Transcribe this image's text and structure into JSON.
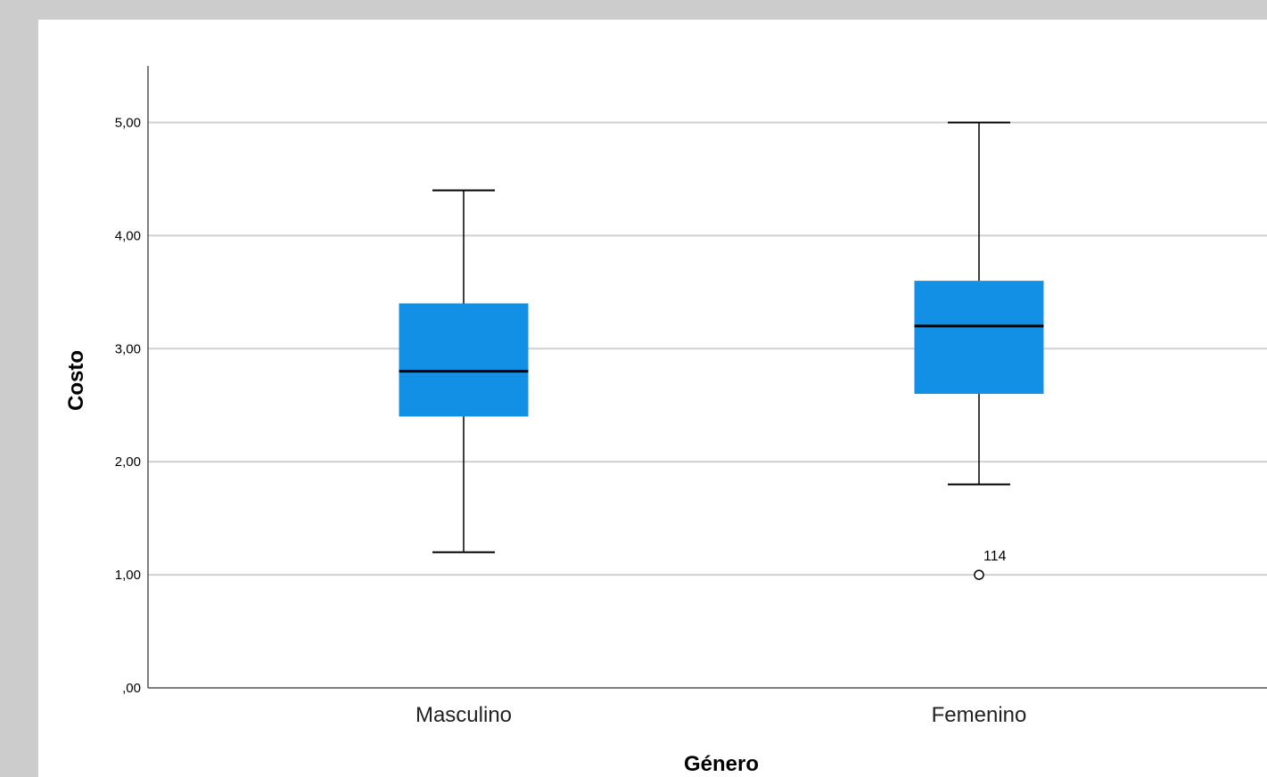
{
  "chart_data": {
    "type": "boxplot",
    "xlabel": "Género",
    "ylabel": "Costo",
    "ylim": [
      0,
      5.5
    ],
    "yticks": [
      {
        "value": 0,
        "label": ",00"
      },
      {
        "value": 1,
        "label": "1,00"
      },
      {
        "value": 2,
        "label": "2,00"
      },
      {
        "value": 3,
        "label": "3,00"
      },
      {
        "value": 4,
        "label": "4,00"
      },
      {
        "value": 5,
        "label": "5,00"
      }
    ],
    "grid": true,
    "colors": {
      "box": "#1290e6",
      "median": "#000000",
      "grid": "#d0d0d0"
    },
    "categories": [
      "Masculino",
      "Femenino"
    ],
    "boxes": [
      {
        "category": "Masculino",
        "min": 1.2,
        "q1": 2.4,
        "median": 2.8,
        "q3": 3.4,
        "max": 4.4,
        "outliers": []
      },
      {
        "category": "Femenino",
        "min": 1.8,
        "q1": 2.6,
        "median": 3.2,
        "q3": 3.6,
        "max": 5.0,
        "outliers": [
          {
            "value": 1.0,
            "label": "114"
          }
        ]
      }
    ]
  }
}
